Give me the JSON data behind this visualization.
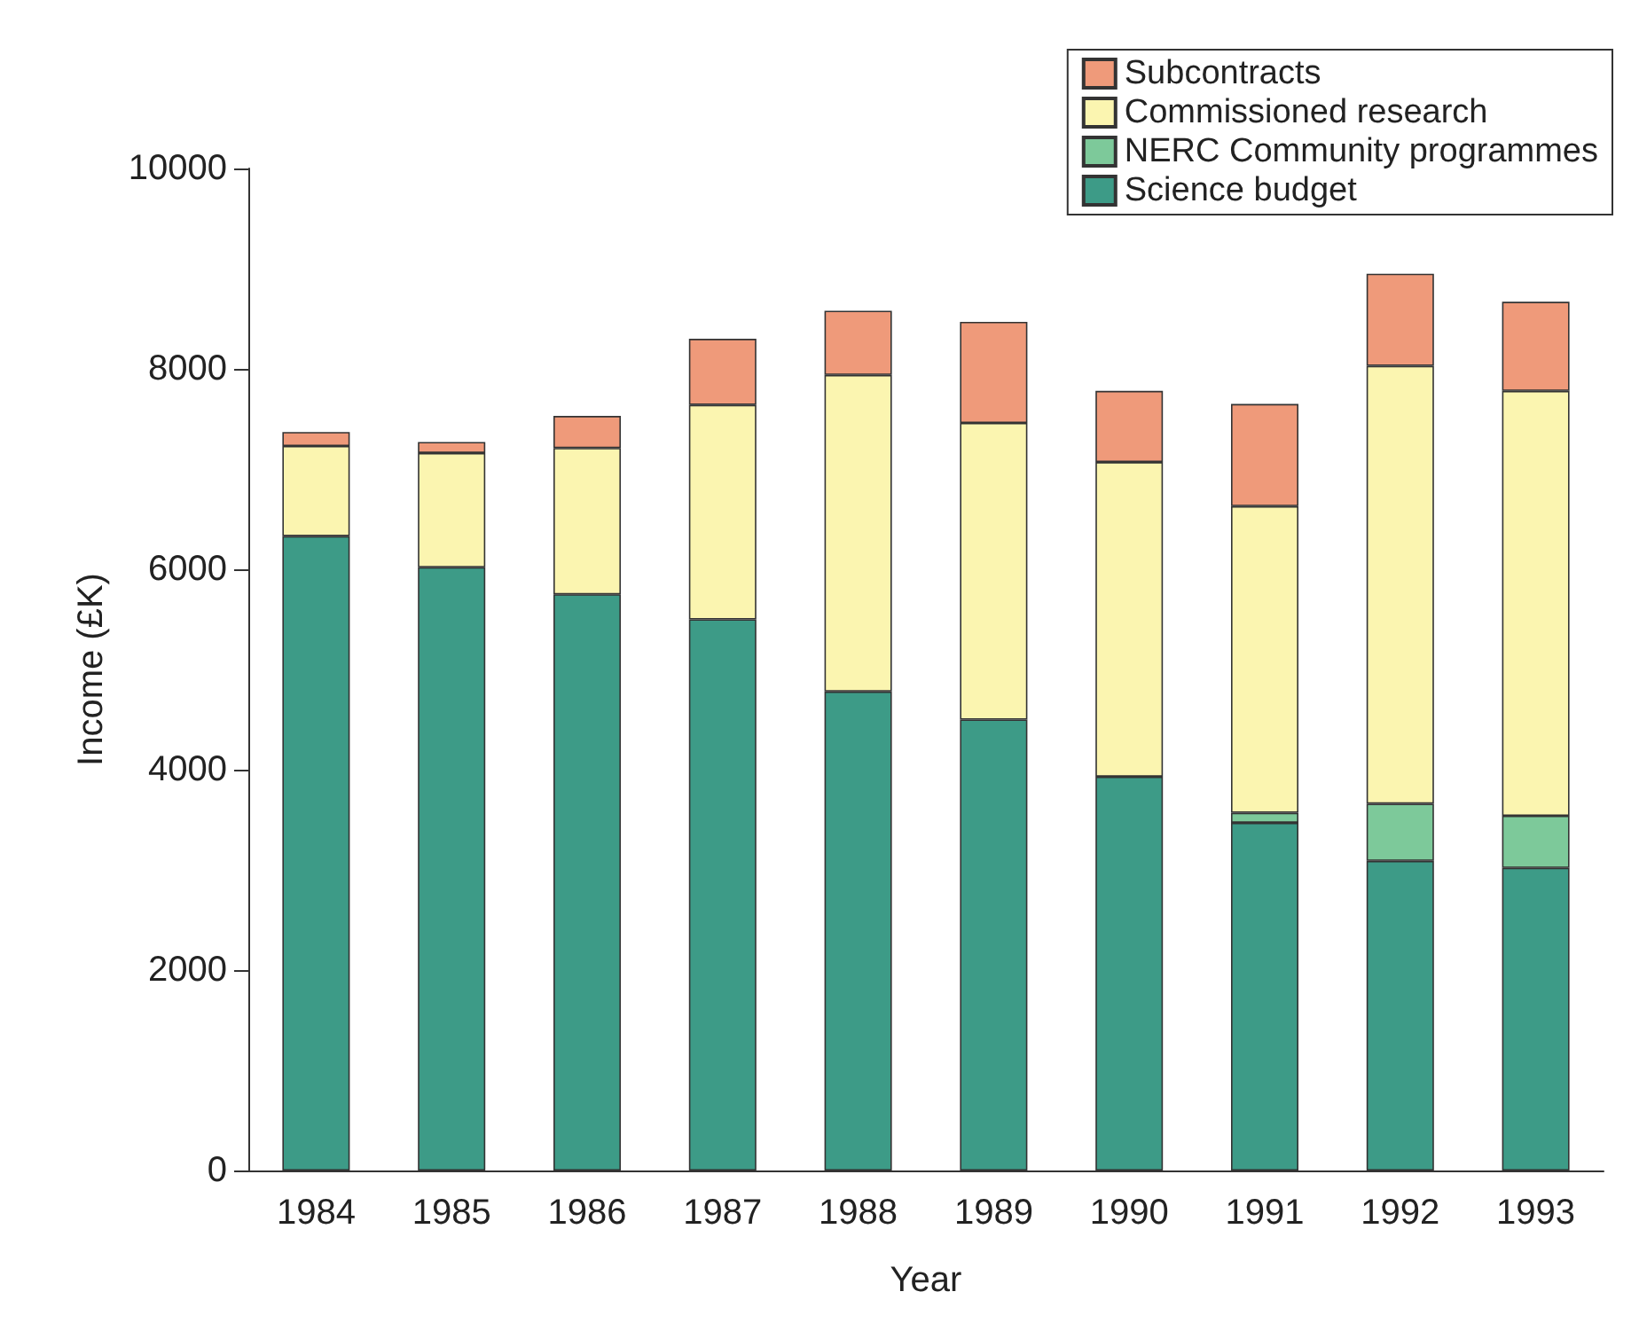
{
  "chart_data": {
    "type": "bar",
    "stacked": true,
    "xlabel": "Year",
    "ylabel": "Income (£K)",
    "categories": [
      "1984",
      "1985",
      "1986",
      "1987",
      "1988",
      "1989",
      "1990",
      "1991",
      "1992",
      "1993"
    ],
    "series": [
      {
        "name": "Science budget",
        "color": "#3d9b87",
        "values": [
          6330,
          6020,
          5750,
          5500,
          4780,
          4500,
          3930,
          3470,
          3090,
          3020
        ]
      },
      {
        "name": "NERC Community programmes",
        "color": "#7dc99a",
        "values": [
          null,
          null,
          null,
          null,
          null,
          null,
          null,
          100,
          570,
          520
        ]
      },
      {
        "name": "Commissioned research",
        "color": "#fbf5b0",
        "values": [
          900,
          1140,
          1460,
          2140,
          3160,
          2960,
          3140,
          3060,
          4370,
          4240
        ]
      },
      {
        "name": "Subcontracts",
        "color": "#ef9a7a",
        "values": [
          140,
          110,
          320,
          660,
          640,
          1010,
          710,
          1020,
          920,
          890
        ]
      }
    ],
    "ylim": [
      0,
      10000
    ],
    "yticks": [
      0,
      2000,
      4000,
      6000,
      8000,
      10000
    ],
    "grid": false,
    "legend": "top right"
  }
}
